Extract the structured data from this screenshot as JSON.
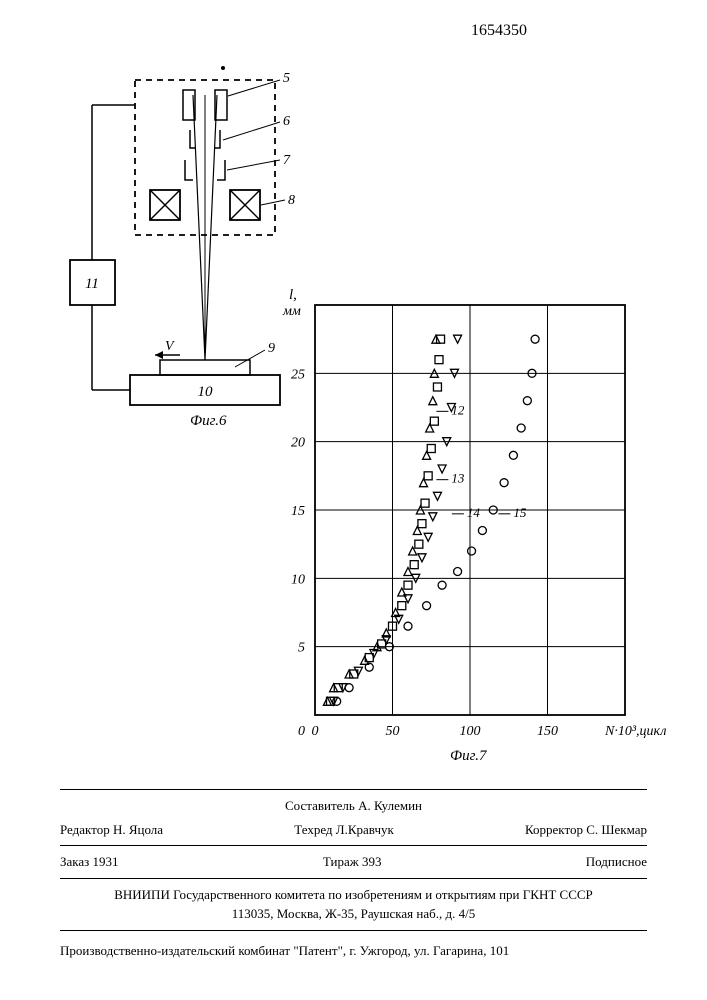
{
  "page_number": "1654350",
  "diagram": {
    "labels": [
      "5",
      "6",
      "7",
      "8",
      "9",
      "10",
      "11"
    ],
    "v_label": "V",
    "caption": "Фиг.6"
  },
  "chart": {
    "type": "scatter",
    "caption": "Фиг.7",
    "y_label": "l, мм",
    "x_label": "N·10³, цикл",
    "xlim": [
      0,
      200
    ],
    "ylim": [
      0,
      30
    ],
    "xticks": [
      0,
      50,
      100,
      150
    ],
    "yticks": [
      0,
      5,
      10,
      15,
      20,
      25
    ],
    "grid_color": "#000000",
    "background_color": "#ffffff",
    "series": [
      {
        "id": "12",
        "marker": "triangle-up",
        "color": "#000000",
        "points": [
          [
            8,
            1
          ],
          [
            12,
            2
          ],
          [
            22,
            3
          ],
          [
            32,
            4
          ],
          [
            40,
            5
          ],
          [
            46,
            6
          ],
          [
            52,
            7.5
          ],
          [
            56,
            9
          ],
          [
            60,
            10.5
          ],
          [
            63,
            12
          ],
          [
            66,
            13.5
          ],
          [
            68,
            15
          ],
          [
            70,
            17
          ],
          [
            72,
            19
          ],
          [
            74,
            21
          ],
          [
            76,
            23
          ],
          [
            77,
            25
          ],
          [
            78,
            27.5
          ]
        ]
      },
      {
        "id": "13",
        "marker": "square",
        "color": "#000000",
        "points": [
          [
            10,
            1
          ],
          [
            15,
            2
          ],
          [
            25,
            3
          ],
          [
            35,
            4.2
          ],
          [
            43,
            5.2
          ],
          [
            50,
            6.5
          ],
          [
            56,
            8
          ],
          [
            60,
            9.5
          ],
          [
            64,
            11
          ],
          [
            67,
            12.5
          ],
          [
            69,
            14
          ],
          [
            71,
            15.5
          ],
          [
            73,
            17.5
          ],
          [
            75,
            19.5
          ],
          [
            77,
            21.5
          ],
          [
            79,
            24
          ],
          [
            80,
            26
          ],
          [
            81,
            27.5
          ]
        ]
      },
      {
        "id": "14",
        "marker": "triangle-down",
        "color": "#000000",
        "points": [
          [
            12,
            1
          ],
          [
            18,
            2
          ],
          [
            28,
            3.2
          ],
          [
            38,
            4.5
          ],
          [
            46,
            5.5
          ],
          [
            54,
            7
          ],
          [
            60,
            8.5
          ],
          [
            65,
            10
          ],
          [
            69,
            11.5
          ],
          [
            73,
            13
          ],
          [
            76,
            14.5
          ],
          [
            79,
            16
          ],
          [
            82,
            18
          ],
          [
            85,
            20
          ],
          [
            88,
            22.5
          ],
          [
            90,
            25
          ],
          [
            92,
            27.5
          ]
        ]
      },
      {
        "id": "15",
        "marker": "circle",
        "color": "#000000",
        "points": [
          [
            14,
            1
          ],
          [
            22,
            2
          ],
          [
            35,
            3.5
          ],
          [
            48,
            5
          ],
          [
            60,
            6.5
          ],
          [
            72,
            8
          ],
          [
            82,
            9.5
          ],
          [
            92,
            10.5
          ],
          [
            101,
            12
          ],
          [
            108,
            13.5
          ],
          [
            115,
            15
          ],
          [
            122,
            17
          ],
          [
            128,
            19
          ],
          [
            133,
            21
          ],
          [
            137,
            23
          ],
          [
            140,
            25
          ],
          [
            142,
            27.5
          ]
        ]
      }
    ],
    "series_labels": [
      {
        "id": "12",
        "x": 88,
        "y": 22
      },
      {
        "id": "13",
        "x": 88,
        "y": 17
      },
      {
        "id": "14",
        "x": 98,
        "y": 14.5
      },
      {
        "id": "15",
        "x": 128,
        "y": 14.5
      }
    ]
  },
  "footer": {
    "compiler": "Составитель А. Кулемин",
    "editor": "Редактор Н. Яцола",
    "techred": "Техред Л.Кравчук",
    "corrector": "Корректор С. Шекмар",
    "order": "Заказ 1931",
    "tirage": "Тираж 393",
    "subscription": "Подписное",
    "org": "ВНИИПИ Государственного комитета по изобретениям и открытиям при ГКНТ СССР",
    "addr": "113035, Москва, Ж-35, Раушская наб., д. 4/5",
    "publisher": "Производственно-издательский комбинат \"Патент\", г. Ужгород, ул. Гагарина, 101"
  }
}
